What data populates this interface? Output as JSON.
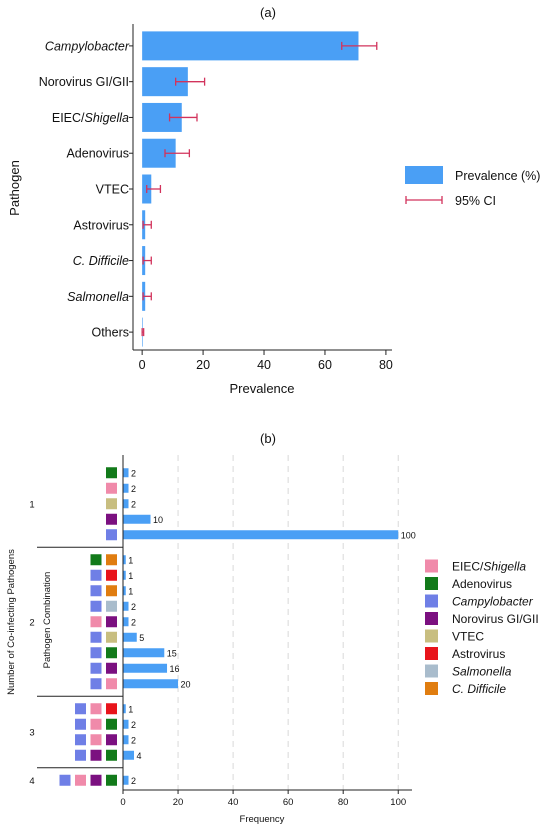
{
  "colors": {
    "bar": "#4a9ff5",
    "ci": "#d2335c",
    "legend_b": {
      "EIEC/Shigella": "#f08aaa",
      "Adenovirus": "#127a1a",
      "Campylobacter": "#6f7fe6",
      "Norovirus GI/GII": "#7b1080",
      "VTEC": "#c8be80",
      "Astrovirus": "#e8141b",
      "Salmonella": "#a9bccc",
      "C. Difficile": "#e07d10"
    }
  },
  "chart_data": [
    {
      "type": "bar",
      "orientation": "horizontal",
      "title": "(a)",
      "xlabel": "Prevalence",
      "ylabel": "Pathogen",
      "xlim": [
        -3,
        82
      ],
      "xticks": [
        0,
        20,
        40,
        60,
        80
      ],
      "grid": false,
      "legend_position": "right",
      "categories": [
        {
          "label": "Campylobacter",
          "italic": "all"
        },
        {
          "label": "Norovirus GI/GII",
          "italic": "none"
        },
        {
          "label": "EIEC/Shigella",
          "italic": "suffix",
          "plain": "EIEC/",
          "ital": "Shigella"
        },
        {
          "label": "Adenovirus",
          "italic": "none"
        },
        {
          "label": "VTEC",
          "italic": "none"
        },
        {
          "label": "Astrovirus",
          "italic": "none"
        },
        {
          "label": "C. Difficile",
          "italic": "all"
        },
        {
          "label": "Salmonella",
          "italic": "all"
        },
        {
          "label": "Others",
          "italic": "none"
        }
      ],
      "series": [
        {
          "name": "Prevalence (%)",
          "values": [
            71,
            15,
            13,
            11,
            3,
            1,
            1,
            1,
            0.2
          ]
        },
        {
          "name": "95% CI",
          "lower": [
            65.5,
            11,
            9,
            7.5,
            1.5,
            0.3,
            0.3,
            0.3,
            0
          ],
          "upper": [
            77,
            20.5,
            18,
            15.5,
            6,
            3,
            3,
            3,
            0.5
          ]
        }
      ]
    },
    {
      "type": "bar",
      "orientation": "horizontal",
      "title": "(b)",
      "xlabel": "Frequency",
      "ylabel": "Number of Co-infecting Pathogens",
      "inner_ylabel": "Pathogen Combination",
      "xlim": [
        0,
        105
      ],
      "xticks": [
        0,
        20,
        40,
        60,
        80,
        100
      ],
      "grid": true,
      "legend_position": "right",
      "groups": [
        {
          "label": "1",
          "rows": [
            {
              "combo": [
                "Adenovirus"
              ],
              "value": 2
            },
            {
              "combo": [
                "EIEC/Shigella"
              ],
              "value": 2
            },
            {
              "combo": [
                "VTEC"
              ],
              "value": 2
            },
            {
              "combo": [
                "Norovirus GI/GII"
              ],
              "value": 10
            },
            {
              "combo": [
                "Campylobacter"
              ],
              "value": 100
            }
          ]
        },
        {
          "label": "2",
          "rows": [
            {
              "combo": [
                "Adenovirus",
                "C. Difficile"
              ],
              "value": 1
            },
            {
              "combo": [
                "Campylobacter",
                "Astrovirus"
              ],
              "value": 1
            },
            {
              "combo": [
                "Campylobacter",
                "C. Difficile"
              ],
              "value": 1
            },
            {
              "combo": [
                "Campylobacter",
                "Salmonella"
              ],
              "value": 2
            },
            {
              "combo": [
                "EIEC/Shigella",
                "Norovirus GI/GII"
              ],
              "value": 2
            },
            {
              "combo": [
                "Campylobacter",
                "VTEC"
              ],
              "value": 5
            },
            {
              "combo": [
                "Campylobacter",
                "Adenovirus"
              ],
              "value": 15
            },
            {
              "combo": [
                "Campylobacter",
                "Norovirus GI/GII"
              ],
              "value": 16
            },
            {
              "combo": [
                "Campylobacter",
                "EIEC/Shigella"
              ],
              "value": 20
            }
          ]
        },
        {
          "label": "3",
          "rows": [
            {
              "combo": [
                "Campylobacter",
                "EIEC/Shigella",
                "Astrovirus"
              ],
              "value": 1
            },
            {
              "combo": [
                "Campylobacter",
                "EIEC/Shigella",
                "Adenovirus"
              ],
              "value": 2
            },
            {
              "combo": [
                "Campylobacter",
                "EIEC/Shigella",
                "Norovirus GI/GII"
              ],
              "value": 2
            },
            {
              "combo": [
                "Campylobacter",
                "Norovirus GI/GII",
                "Adenovirus"
              ],
              "value": 4
            }
          ]
        },
        {
          "label": "4",
          "rows": [
            {
              "combo": [
                "Campylobacter",
                "EIEC/Shigella",
                "Norovirus GI/GII",
                "Adenovirus"
              ],
              "value": 2
            }
          ]
        }
      ],
      "legend": [
        {
          "label": "EIEC/Shigella",
          "italic": "suffix",
          "plain": "EIEC/",
          "ital": "Shigella"
        },
        {
          "label": "Adenovirus",
          "italic": "none"
        },
        {
          "label": "Campylobacter",
          "italic": "all"
        },
        {
          "label": "Norovirus GI/GII",
          "italic": "none"
        },
        {
          "label": "VTEC",
          "italic": "none"
        },
        {
          "label": "Astrovirus",
          "italic": "none"
        },
        {
          "label": "Salmonella",
          "italic": "all"
        },
        {
          "label": "C. Difficile",
          "italic": "all"
        }
      ]
    }
  ]
}
